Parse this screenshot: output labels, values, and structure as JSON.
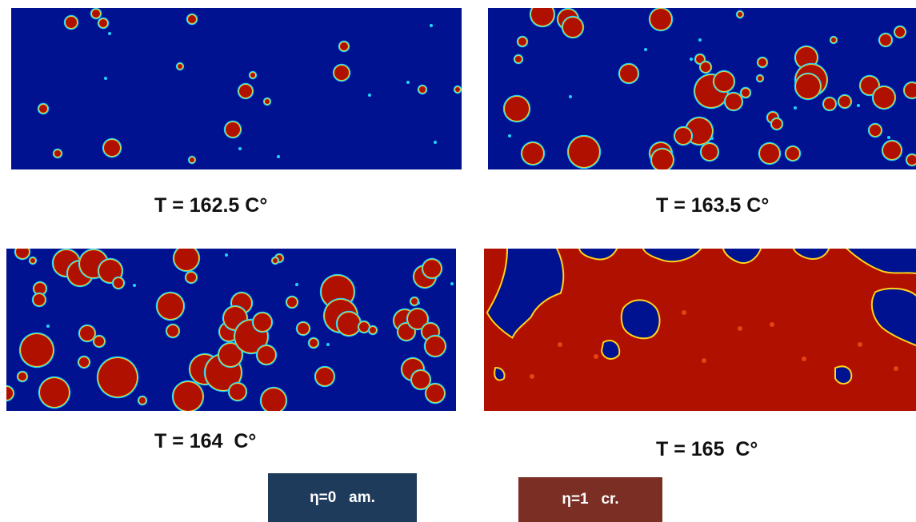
{
  "panels": [
    {
      "caption": "T = 162.5 C°"
    },
    {
      "caption": "T = 163.5 C°"
    },
    {
      "caption": "T = 164  C°"
    },
    {
      "caption": "T = 165  C°"
    }
  ],
  "legend": {
    "amorphous": {
      "label": "η=0   am.",
      "color": "#1f3b5c"
    },
    "crystalline": {
      "label": "η=1   cr.",
      "color": "#7a2e24"
    }
  },
  "colors": {
    "background_phase": "#00128f",
    "crystal_phase": "#b01000",
    "interface_ring": "#1fd4ff"
  }
}
